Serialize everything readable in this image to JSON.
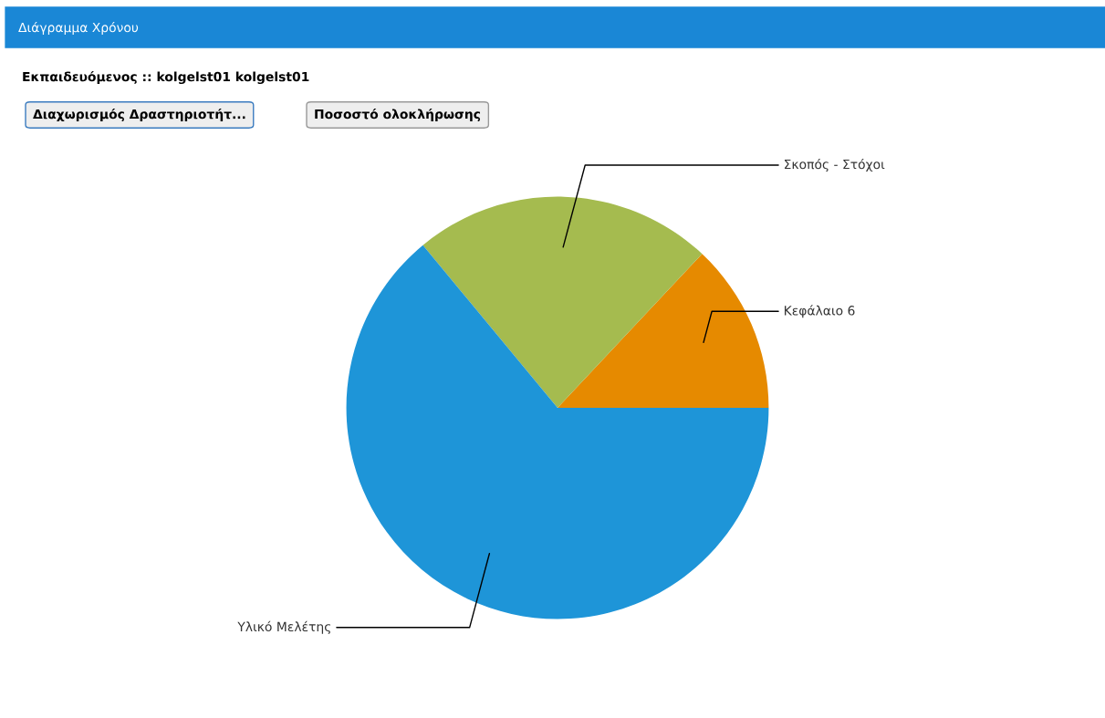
{
  "chart_data": {
    "type": "pie",
    "title": "Διάγραμμα Χρόνου",
    "subtitle": "Εκπαιδευόμενος :: kolgelst01 kolgelst01",
    "annotations": [
      "Διαχωρισμός Δραστηριοτήτ...",
      "Ποσοστό ολοκλήρωσης"
    ],
    "categories": [
      "Κεφάλαιο 6",
      "Σκοπός - Στόχοι",
      "Υλικό Μελέτης"
    ],
    "values": [
      13,
      23,
      64
    ],
    "colors": [
      "#e68a00",
      "#a5bb4f",
      "#1e95d8"
    ]
  }
}
